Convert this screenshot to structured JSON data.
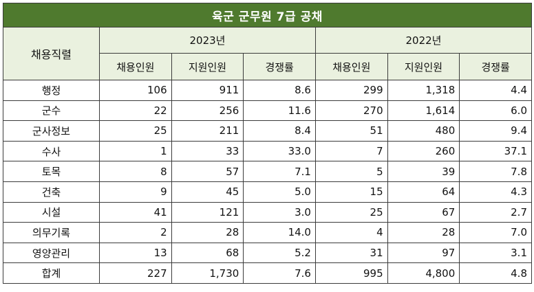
{
  "title": "육군 군무원 7급 공채",
  "header": {
    "category": "채용직렬",
    "years": [
      "2023년",
      "2022년"
    ],
    "cols": [
      "채용인원",
      "지원인원",
      "경쟁률"
    ]
  },
  "rows": [
    {
      "name": "행정",
      "v": [
        "106",
        "911",
        "8.6",
        "299",
        "1,318",
        "4.4"
      ]
    },
    {
      "name": "군수",
      "v": [
        "22",
        "256",
        "11.6",
        "270",
        "1,614",
        "6.0"
      ]
    },
    {
      "name": "군사정보",
      "v": [
        "25",
        "211",
        "8.4",
        "51",
        "480",
        "9.4"
      ]
    },
    {
      "name": "수사",
      "v": [
        "1",
        "33",
        "33.0",
        "7",
        "260",
        "37.1"
      ]
    },
    {
      "name": "토목",
      "v": [
        "8",
        "57",
        "7.1",
        "5",
        "39",
        "7.8"
      ]
    },
    {
      "name": "건축",
      "v": [
        "9",
        "45",
        "5.0",
        "15",
        "64",
        "4.3"
      ]
    },
    {
      "name": "시설",
      "v": [
        "41",
        "121",
        "3.0",
        "25",
        "67",
        "2.7"
      ]
    },
    {
      "name": "의무기록",
      "v": [
        "2",
        "28",
        "14.0",
        "4",
        "28",
        "7.0"
      ]
    },
    {
      "name": "영양관리",
      "v": [
        "13",
        "68",
        "5.2",
        "31",
        "97",
        "3.1"
      ]
    },
    {
      "name": "합계",
      "v": [
        "227",
        "1,730",
        "7.6",
        "995",
        "4,800",
        "4.8"
      ]
    }
  ],
  "colors": {
    "title_bg": "#4f7a2e",
    "header_bg": "#eaf1df"
  }
}
